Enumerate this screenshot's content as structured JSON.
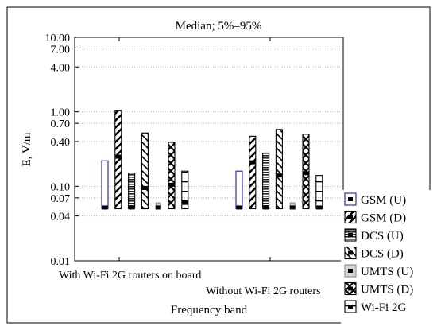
{
  "chart_data": {
    "type": "box",
    "title": "Median; 5%–95%",
    "xlabel": "Frequency band",
    "ylabel": "E,  V/m",
    "yscale": "log",
    "ylim": [
      0.01,
      10
    ],
    "yticks": [
      {
        "value": 10,
        "label": "10.00"
      },
      {
        "value": 7,
        "label": "7.00"
      },
      {
        "value": 4,
        "label": "4.00"
      },
      {
        "value": 1,
        "label": "1.00"
      },
      {
        "value": 0.7,
        "label": "0.70"
      },
      {
        "value": 0.4,
        "label": "0.40"
      },
      {
        "value": 0.1,
        "label": "0.10"
      },
      {
        "value": 0.07,
        "label": "0.07"
      },
      {
        "value": 0.04,
        "label": "0.04"
      },
      {
        "value": 0.01,
        "label": "0.01"
      }
    ],
    "grid": true,
    "legend_position": "bottom-right",
    "categories": [
      "With Wi-Fi 2G routers on board",
      "Without Wi-Fi 2G routers"
    ],
    "series": [
      {
        "name": "GSM (U)",
        "pattern": "blue-outline",
        "stats": [
          {
            "p5": 0.05,
            "median": 0.052,
            "p95": 0.22
          },
          {
            "p5": 0.05,
            "median": 0.052,
            "p95": 0.16
          }
        ]
      },
      {
        "name": "GSM (D)",
        "pattern": "diag-back",
        "stats": [
          {
            "p5": 0.05,
            "median": 0.25,
            "p95": 1.05
          },
          {
            "p5": 0.05,
            "median": 0.21,
            "p95": 0.47
          }
        ]
      },
      {
        "name": "DCS (U)",
        "pattern": "hlines",
        "stats": [
          {
            "p5": 0.05,
            "median": 0.052,
            "p95": 0.15
          },
          {
            "p5": 0.05,
            "median": 0.052,
            "p95": 0.28
          }
        ]
      },
      {
        "name": "DCS (D)",
        "pattern": "diag-fwd",
        "stats": [
          {
            "p5": 0.05,
            "median": 0.095,
            "p95": 0.52
          },
          {
            "p5": 0.05,
            "median": 0.14,
            "p95": 0.58
          }
        ]
      },
      {
        "name": "UMTS (U)",
        "pattern": "light-gray",
        "stats": [
          {
            "p5": 0.05,
            "median": 0.052,
            "p95": 0.06
          },
          {
            "p5": 0.05,
            "median": 0.052,
            "p95": 0.06
          }
        ]
      },
      {
        "name": "UMTS (D)",
        "pattern": "crosshatch",
        "stats": [
          {
            "p5": 0.05,
            "median": 0.105,
            "p95": 0.39
          },
          {
            "p5": 0.05,
            "median": 0.15,
            "p95": 0.5
          }
        ]
      },
      {
        "name": "Wi-Fi 2G",
        "pattern": "bands",
        "stats": [
          {
            "p5": 0.05,
            "median": 0.06,
            "p95": 0.16
          },
          {
            "p5": 0.05,
            "median": 0.052,
            "p95": 0.14
          }
        ]
      }
    ]
  }
}
